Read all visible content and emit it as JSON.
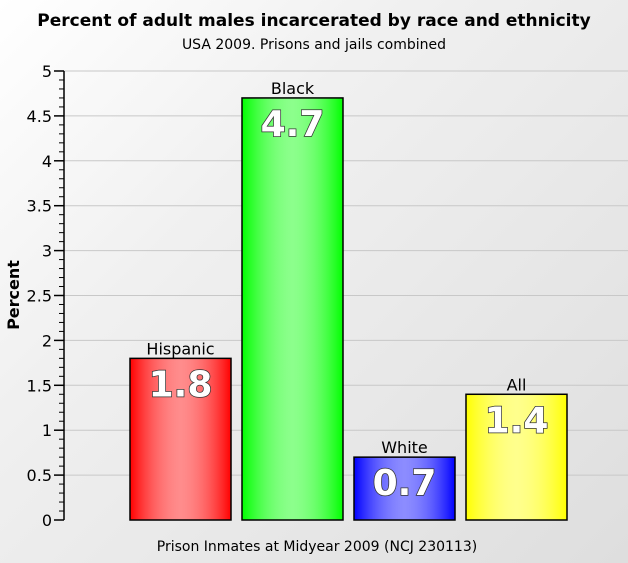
{
  "chart_data": {
    "type": "bar",
    "title": "Percent of adult males incarcerated by race and ethnicity",
    "subtitle": "USA 2009. Prisons and jails combined",
    "xlabel": "Prison Inmates at Midyear 2009 (NCJ 230113)",
    "ylabel": "Percent",
    "ylim": [
      0,
      5
    ],
    "yticks": [
      "0",
      "0.5",
      "1",
      "1.5",
      "2",
      "2.5",
      "3",
      "3.5",
      "4",
      "4.5",
      "5"
    ],
    "grid": true,
    "categories": [
      "Hispanic",
      "Black",
      "White",
      "All"
    ],
    "values": [
      1.8,
      4.7,
      0.7,
      1.4
    ],
    "value_labels": [
      "1.8",
      "4.7",
      "0.7",
      "1.4"
    ],
    "colors": [
      "#ff0000",
      "#00ff00",
      "#0000ff",
      "#ffff00"
    ]
  }
}
